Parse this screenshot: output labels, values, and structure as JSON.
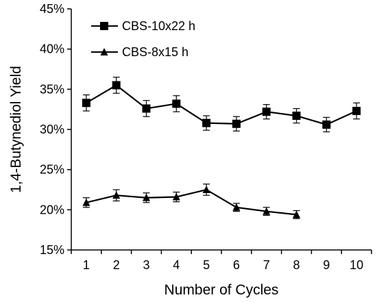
{
  "chart_data": {
    "type": "line",
    "title": "",
    "xlabel": "Number of Cycles",
    "ylabel": "1,4-Butynediol Yield",
    "x": [
      1,
      2,
      3,
      4,
      5,
      6,
      7,
      8,
      9,
      10
    ],
    "xlim": [
      0.5,
      10.5
    ],
    "ylim": [
      0.15,
      0.45
    ],
    "y_ticks": [
      0.15,
      0.2,
      0.25,
      0.3,
      0.35,
      0.4,
      0.45
    ],
    "y_tick_labels": [
      "15%",
      "20%",
      "25%",
      "30%",
      "35%",
      "40%",
      "45%"
    ],
    "x_tick_labels": [
      "1",
      "2",
      "3",
      "4",
      "5",
      "6",
      "7",
      "8",
      "9",
      "10"
    ],
    "grid": false,
    "legend_position": "top-left",
    "series": [
      {
        "name": "CBS-10x22 h",
        "marker": "square",
        "color": "#000000",
        "x": [
          1,
          2,
          3,
          4,
          5,
          6,
          7,
          8,
          9,
          10
        ],
        "values": [
          0.333,
          0.355,
          0.326,
          0.332,
          0.308,
          0.307,
          0.322,
          0.317,
          0.306,
          0.323
        ],
        "errors": [
          0.01,
          0.01,
          0.01,
          0.01,
          0.009,
          0.009,
          0.009,
          0.009,
          0.009,
          0.01
        ]
      },
      {
        "name": "CBS-8x15 h",
        "marker": "triangle",
        "color": "#000000",
        "x": [
          1,
          2,
          3,
          4,
          5,
          6,
          7,
          8
        ],
        "values": [
          0.209,
          0.218,
          0.215,
          0.216,
          0.225,
          0.203,
          0.198,
          0.194
        ],
        "errors": [
          0.006,
          0.007,
          0.006,
          0.006,
          0.007,
          0.005,
          0.005,
          0.005
        ]
      }
    ]
  }
}
